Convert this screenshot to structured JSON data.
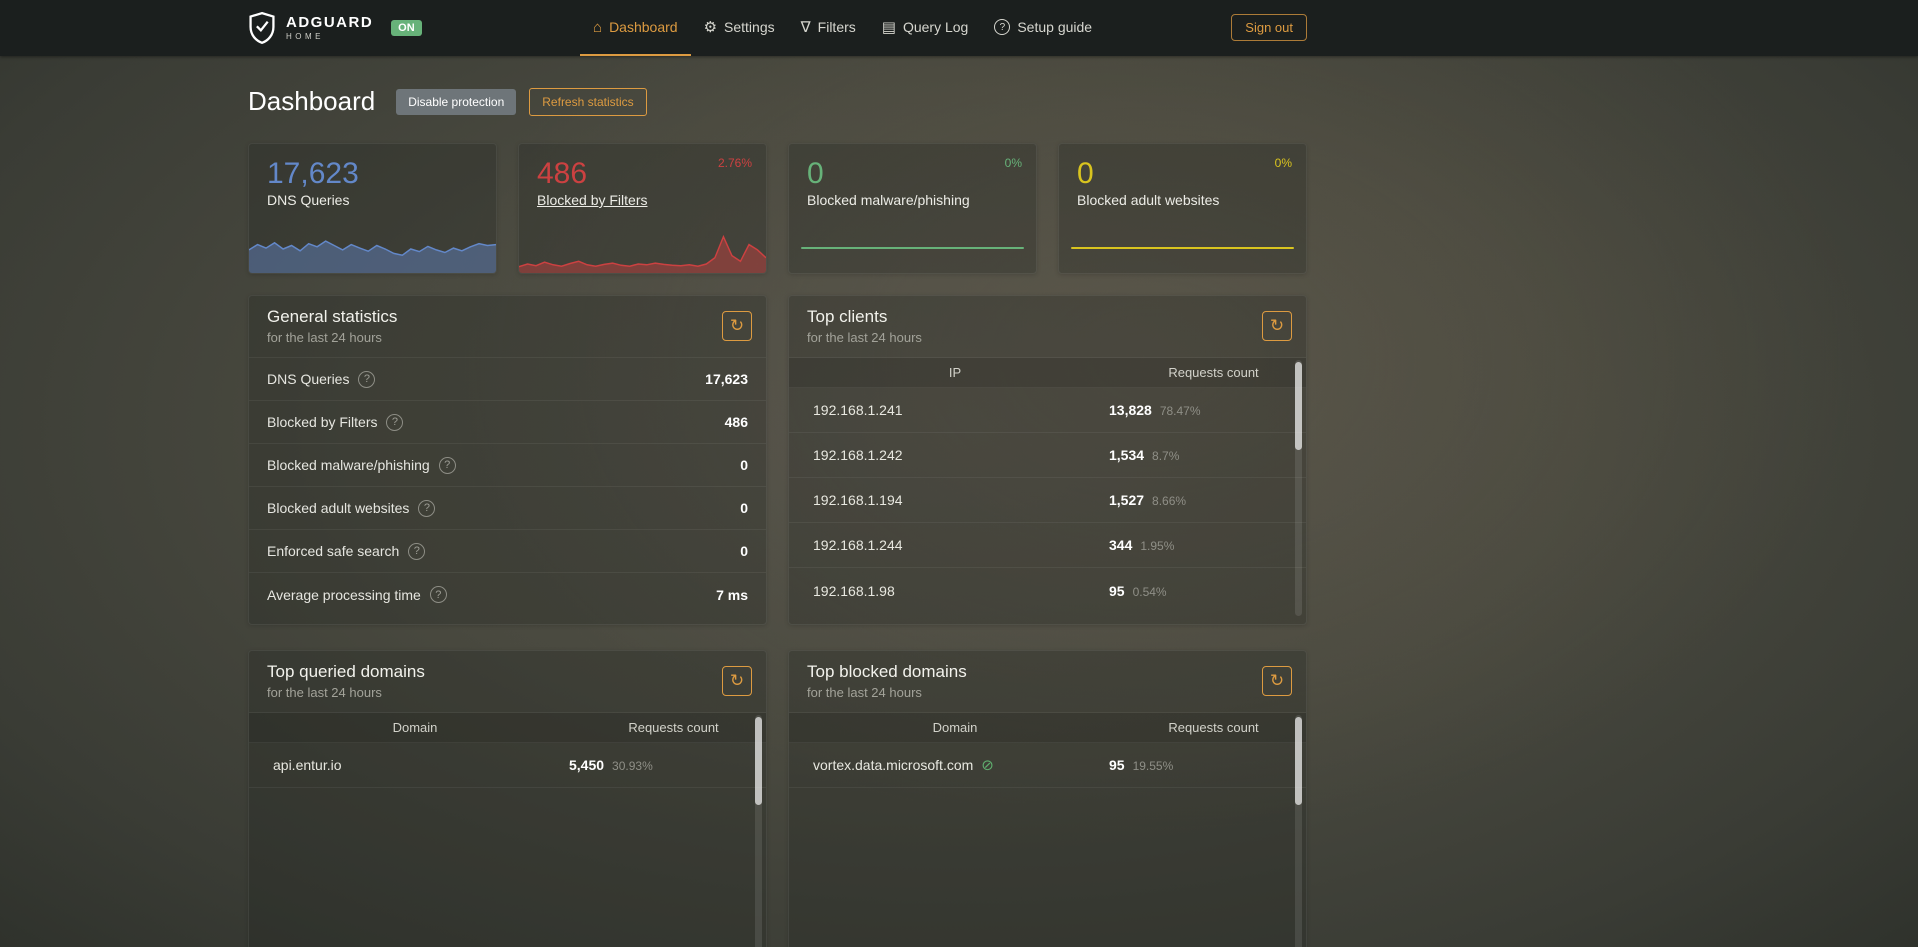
{
  "icons": {
    "refresh": "↻",
    "help": "?",
    "home": "⌂",
    "gear": "⚙",
    "funnel": "∇",
    "doc": "▤",
    "question": "?",
    "block": "⊘"
  },
  "topnav": {
    "brand": "ADGUARD",
    "brand_sub": "HOME",
    "status_badge": "ON",
    "items": [
      {
        "label": "Dashboard",
        "icon": "⌂",
        "active": true
      },
      {
        "label": "Settings",
        "icon": "⚙"
      },
      {
        "label": "Filters",
        "icon": "∇"
      },
      {
        "label": "Query Log",
        "icon": "▤"
      },
      {
        "label": "Setup guide",
        "icon": "?"
      }
    ],
    "signout_label": "Sign out"
  },
  "page": {
    "title": "Dashboard",
    "disable_button": "Disable protection",
    "refresh_button": "Refresh statistics"
  },
  "stat_cards": [
    {
      "value": "17,623",
      "label": "DNS Queries",
      "percent": "",
      "color": "#6388c9",
      "fill": "rgba(99,136,201,0.45)",
      "sparkline": [
        48,
        60,
        52,
        64,
        50,
        58,
        46,
        62,
        55,
        68,
        58,
        48,
        60,
        52,
        45,
        58,
        50,
        40,
        36,
        50,
        44,
        56,
        48,
        42,
        52,
        46,
        55,
        62,
        58,
        60
      ]
    },
    {
      "value": "486",
      "label": "Blocked by Filters",
      "percent": "2.76%",
      "color": "#cc4141",
      "fill": "rgba(204,65,65,0.45)",
      "sparkline": [
        10,
        16,
        12,
        20,
        14,
        11,
        17,
        22,
        14,
        11,
        15,
        18,
        13,
        11,
        16,
        14,
        18,
        15,
        13,
        12,
        14,
        11,
        16,
        30,
        78,
        35,
        22,
        60,
        48,
        30
      ]
    },
    {
      "value": "0",
      "label": "Blocked malware/phishing",
      "percent": "0%",
      "color": "#67b279"
    },
    {
      "value": "0",
      "label": "Blocked adult websites",
      "percent": "0%",
      "color": "#d9c41f"
    }
  ],
  "general_stats": {
    "title": "General statistics",
    "subtitle": "for the last 24 hours",
    "rows": [
      {
        "label": "DNS Queries",
        "value": "17,623"
      },
      {
        "label": "Blocked by Filters",
        "value": "486"
      },
      {
        "label": "Blocked malware/phishing",
        "value": "0"
      },
      {
        "label": "Blocked adult websites",
        "value": "0"
      },
      {
        "label": "Enforced safe search",
        "value": "0"
      },
      {
        "label": "Average processing time",
        "value": "7 ms"
      }
    ]
  },
  "top_clients": {
    "title": "Top clients",
    "subtitle": "for the last 24 hours",
    "columns": {
      "c1": "IP",
      "c2": "Requests count"
    },
    "rows": [
      {
        "ip": "192.168.1.241",
        "count": "13,828",
        "percent": "78.47%",
        "bar": 78.47,
        "bar_color": "#67b279"
      },
      {
        "ip": "192.168.1.242",
        "count": "1,534",
        "percent": "8.7%",
        "bar": 8.7,
        "bar_color": "#cc4141"
      },
      {
        "ip": "192.168.1.194",
        "count": "1,527",
        "percent": "8.66%",
        "bar": 8.66,
        "bar_color": "#cc4141"
      },
      {
        "ip": "192.168.1.244",
        "count": "344",
        "percent": "1.95%",
        "bar": 1.95,
        "bar_color": "#cc4141"
      },
      {
        "ip": "192.168.1.98",
        "count": "95",
        "percent": "0.54%",
        "bar": 0.54,
        "bar_color": "#cc4141"
      }
    ]
  },
  "top_queried": {
    "title": "Top queried domains",
    "subtitle": "for the last 24 hours",
    "columns": {
      "c1": "Domain",
      "c2": "Requests count"
    },
    "rows": [
      {
        "domain": "api.entur.io",
        "count": "5,450",
        "percent": "30.93%",
        "bar": 30.93,
        "bar_color": "#cc4141"
      }
    ]
  },
  "top_blocked": {
    "title": "Top blocked domains",
    "subtitle": "for the last 24 hours",
    "columns": {
      "c1": "Domain",
      "c2": "Requests count"
    },
    "rows": [
      {
        "domain": "vortex.data.microsoft.com",
        "count": "95",
        "percent": "19.55%",
        "bar": 19.55,
        "bar_color": "#cc4141"
      }
    ]
  }
}
